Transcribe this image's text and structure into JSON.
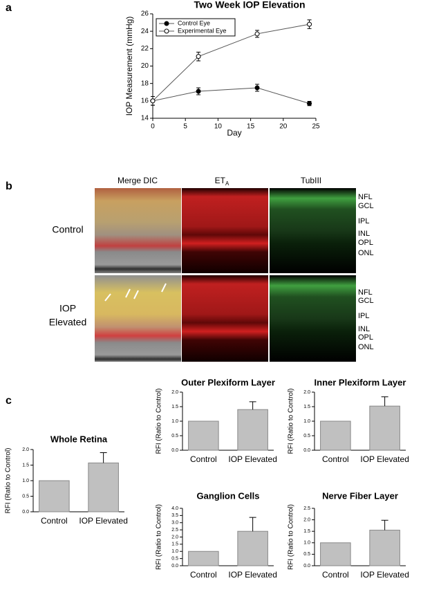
{
  "panel_labels": [
    "a",
    "b",
    "c"
  ],
  "micrographs": {
    "columns": [
      {
        "label": "Merge DIC"
      },
      {
        "label": "ET",
        "subscript": "A"
      },
      {
        "label": "TubIII"
      }
    ],
    "rows": [
      [
        "Control"
      ],
      [
        "IOP",
        "Elevated"
      ]
    ],
    "layers": [
      "NFL",
      "GCL",
      "IPL",
      "INL",
      "OPL",
      "ONL"
    ]
  },
  "chart_data": [
    {
      "type": "line",
      "title": "Two Week IOP Elevation",
      "xlabel": "Day",
      "ylabel": "IOP Measurement (mmHg)",
      "x": [
        0,
        7,
        16,
        24
      ],
      "series": [
        {
          "name": "Control Eye",
          "color": "#000000",
          "marker": "filled",
          "values": [
            16,
            17.1,
            17.5,
            15.7
          ],
          "errors": [
            0.5,
            0.4,
            0.4,
            0.25
          ]
        },
        {
          "name": "Experimental Eye",
          "color": "#000000",
          "marker": "open",
          "values": [
            16,
            21.1,
            23.7,
            24.8
          ],
          "errors": [
            0.5,
            0.5,
            0.4,
            0.5
          ]
        }
      ],
      "xlim": [
        0,
        25
      ],
      "xticks": [
        0,
        5,
        10,
        15,
        20,
        25
      ],
      "ylim": [
        14,
        26
      ],
      "yticks": [
        14,
        16,
        18,
        20,
        22,
        24,
        26
      ],
      "legend": "upper left",
      "line_color": "#555555"
    },
    {
      "type": "bar",
      "title": "Whole Retina",
      "ylabel": "RFI (Ratio to Control)",
      "categories": [
        "Control",
        "IOP Elevated"
      ],
      "values": [
        1,
        1.57
      ],
      "errors": [
        null,
        0.33
      ],
      "color": "#c0c0c0",
      "ylim": [
        0,
        2
      ],
      "yticks": [
        {
          "value": 0,
          "label": "0.0"
        },
        0.5,
        {
          "value": 1,
          "label": "1.0"
        },
        1.5,
        {
          "value": 2,
          "label": "2.0"
        }
      ]
    },
    {
      "type": "bar",
      "title": "Outer Plexiform Layer",
      "ylabel": "RFI (Ratio to Control)",
      "categories": [
        "Control",
        "IOP Elevated"
      ],
      "values": [
        1,
        1.4
      ],
      "errors": [
        null,
        0.27
      ],
      "color": "#c0c0c0",
      "ylim": [
        0,
        2
      ],
      "yticks": [
        {
          "value": 0,
          "label": "0.0"
        },
        0.5,
        {
          "value": 1,
          "label": "1.0"
        },
        1.5,
        {
          "value": 2,
          "label": "2.0"
        }
      ]
    },
    {
      "type": "bar",
      "title": "Inner Plexiform Layer",
      "ylabel": "RFI (Ratio to Control)",
      "categories": [
        "Control",
        "IOP Elevated"
      ],
      "values": [
        1,
        1.52
      ],
      "errors": [
        null,
        0.32
      ],
      "color": "#c0c0c0",
      "ylim": [
        0,
        2
      ],
      "yticks": [
        {
          "value": 0,
          "label": "0.0"
        },
        0.5,
        {
          "value": 1,
          "label": "1.0"
        },
        1.5,
        {
          "value": 2,
          "label": "2.0"
        }
      ]
    },
    {
      "type": "bar",
      "title": "Ganglion Cells",
      "ylabel": "RFI (Ratio to Control)",
      "categories": [
        "Control",
        "IOP Elevated"
      ],
      "values": [
        1,
        2.4
      ],
      "errors": [
        null,
        0.97
      ],
      "color": "#c0c0c0",
      "ylim": [
        0,
        4
      ],
      "yticks": [
        {
          "value": 0,
          "label": "0.0"
        },
        0.5,
        {
          "value": 1,
          "label": "1.0"
        },
        1.5,
        {
          "value": 2,
          "label": "2.0"
        },
        2.5,
        {
          "value": 3,
          "label": "3.0"
        },
        3.5,
        {
          "value": 4,
          "label": "4.0"
        }
      ]
    },
    {
      "type": "bar",
      "title": "Nerve Fiber Layer",
      "ylabel": "RFI (Ratio to Control)",
      "categories": [
        "Control",
        "IOP Elevated"
      ],
      "values": [
        1,
        1.55
      ],
      "errors": [
        null,
        0.43
      ],
      "color": "#c0c0c0",
      "ylim": [
        0,
        2.5
      ],
      "yticks": [
        {
          "value": 0,
          "label": "0.0"
        },
        0.5,
        {
          "value": 1,
          "label": "1.0"
        },
        1.5,
        {
          "value": 2,
          "label": "2.0"
        },
        2.5
      ]
    }
  ]
}
